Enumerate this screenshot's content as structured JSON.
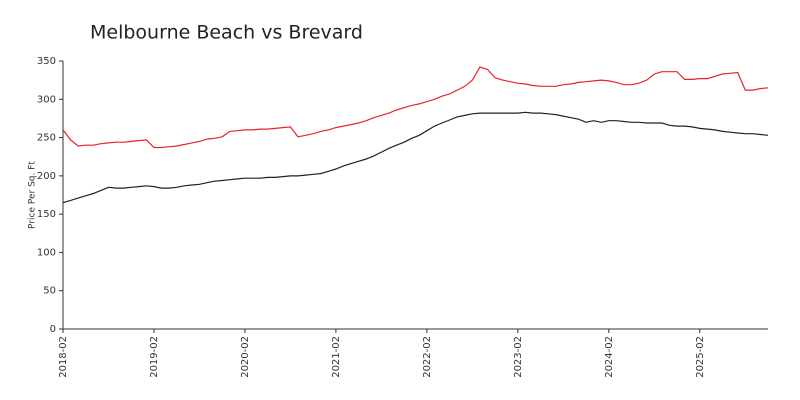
{
  "chart_data": {
    "type": "line",
    "title": "Melbourne Beach vs Brevard",
    "y_label": "Price Per Sq. Ft",
    "categories": [
      "2018-02",
      null,
      null,
      null,
      null,
      null,
      null,
      null,
      null,
      null,
      null,
      null,
      "2019-02",
      null,
      null,
      null,
      null,
      null,
      null,
      null,
      null,
      null,
      null,
      null,
      "2020-02",
      null,
      null,
      null,
      null,
      null,
      null,
      null,
      null,
      null,
      null,
      null,
      "2021-02",
      null,
      null,
      null,
      null,
      null,
      null,
      null,
      null,
      null,
      null,
      null,
      "2022-02",
      null,
      null,
      null,
      null,
      null,
      null,
      null,
      null,
      null,
      null,
      null,
      "2023-02",
      null,
      null,
      null,
      null,
      null,
      null,
      null,
      null,
      null,
      null,
      null,
      "2024-02",
      null,
      null,
      null,
      null,
      null,
      null,
      null,
      null,
      null,
      null,
      null,
      "2025-02",
      null,
      null,
      null,
      null,
      null,
      null,
      null,
      null,
      null
    ],
    "series": [
      {
        "color": "#e8242a",
        "values": [
          260,
          247,
          239,
          240,
          240,
          242,
          243,
          244,
          244,
          245,
          246,
          247,
          237,
          237,
          238,
          239,
          241,
          243,
          245,
          248,
          249,
          251,
          258,
          259,
          260,
          260,
          261,
          261,
          262,
          263,
          264,
          251,
          253,
          255,
          258,
          260,
          263,
          265,
          267,
          269,
          272,
          276,
          279,
          282,
          286,
          289,
          292,
          294,
          297,
          300,
          304,
          307,
          312,
          317,
          325,
          342,
          339,
          328,
          325,
          323,
          321,
          320,
          318,
          317,
          317,
          317,
          319,
          320,
          322,
          323,
          324,
          325,
          324,
          322,
          319,
          319,
          321,
          325,
          333,
          336,
          336,
          336,
          326,
          326,
          327,
          327,
          330,
          333,
          334,
          335,
          312,
          312,
          314,
          315
        ]
      },
      {
        "color": "#222222",
        "values": [
          165,
          168,
          171,
          174,
          177,
          181,
          185,
          184,
          184,
          185,
          186,
          187,
          186,
          184,
          184,
          185,
          187,
          188,
          189,
          191,
          193,
          194,
          195,
          196,
          197,
          197,
          197,
          198,
          198,
          199,
          200,
          200,
          201,
          202,
          203,
          206,
          209,
          213,
          216,
          219,
          222,
          226,
          231,
          236,
          240,
          244,
          249,
          253,
          259,
          265,
          269,
          273,
          277,
          279,
          281,
          282,
          282,
          282,
          282,
          282,
          282,
          283,
          282,
          282,
          281,
          280,
          278,
          276,
          274,
          270,
          272,
          270,
          272,
          272,
          271,
          270,
          270,
          269,
          269,
          269,
          266,
          265,
          265,
          264,
          262,
          261,
          260,
          258,
          257,
          256,
          255,
          255,
          254,
          253
        ]
      }
    ],
    "ylim": [
      0,
      350
    ],
    "yticks": [
      0,
      50,
      100,
      150,
      200,
      250,
      300,
      350
    ]
  }
}
